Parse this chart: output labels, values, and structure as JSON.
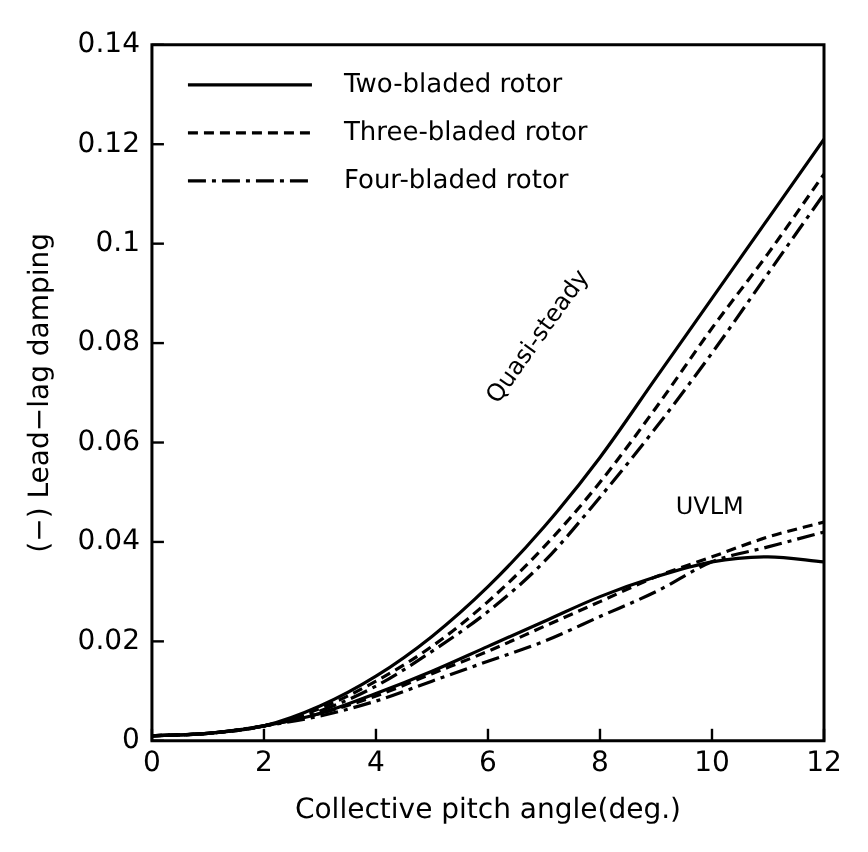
{
  "chart_data": {
    "type": "line",
    "xlabel": "Collective pitch angle(deg.)",
    "ylabel": "(−) Lead−lag damping",
    "x": [
      0,
      1,
      2,
      3,
      4,
      5,
      6,
      7,
      8,
      9,
      10,
      11,
      12
    ],
    "xlim": [
      0,
      12
    ],
    "xticks": [
      0,
      2,
      4,
      6,
      8,
      10,
      12
    ],
    "ylim": [
      0,
      0.14
    ],
    "yticks": [
      0,
      0.02,
      0.04,
      0.06,
      0.08,
      0.1,
      0.12,
      0.14
    ],
    "grid": false,
    "legend": "top left",
    "marker": "none",
    "series": [
      {
        "name": "Two-bladed rotor",
        "color": "#000000",
        "line_style": "solid",
        "values": [
          0.001,
          0.0015,
          0.003,
          0.007,
          0.013,
          0.021,
          0.031,
          0.043,
          0.057,
          0.073,
          0.089,
          0.105,
          0.121
        ]
      },
      {
        "name": "Three-bladed rotor",
        "color": "#000000",
        "line_style": "dashed",
        "values": [
          0.001,
          0.0015,
          0.003,
          0.0065,
          0.012,
          0.019,
          0.028,
          0.039,
          0.052,
          0.067,
          0.083,
          0.098,
          0.114
        ]
      },
      {
        "name": "Four-bladed rotor",
        "color": "#000000",
        "line_style": "dashdot",
        "values": [
          0.001,
          0.0015,
          0.003,
          0.006,
          0.011,
          0.018,
          0.026,
          0.036,
          0.049,
          0.063,
          0.078,
          0.094,
          0.11
        ]
      },
      {
        "color": "#000000",
        "line_style": "solid",
        "values": [
          0.001,
          0.0015,
          0.003,
          0.0055,
          0.0095,
          0.014,
          0.019,
          0.024,
          0.029,
          0.033,
          0.036,
          0.037,
          0.036
        ]
      },
      {
        "color": "#000000",
        "line_style": "dashed",
        "values": [
          0.001,
          0.0015,
          0.003,
          0.0055,
          0.009,
          0.0135,
          0.018,
          0.023,
          0.028,
          0.033,
          0.037,
          0.041,
          0.044
        ]
      },
      {
        "color": "#000000",
        "line_style": "dashdot",
        "values": [
          0.001,
          0.0015,
          0.003,
          0.005,
          0.008,
          0.012,
          0.016,
          0.02,
          0.025,
          0.03,
          0.036,
          0.039,
          0.042
        ]
      }
    ],
    "annotations": [
      "Quasi-steady",
      "UVLM"
    ]
  }
}
